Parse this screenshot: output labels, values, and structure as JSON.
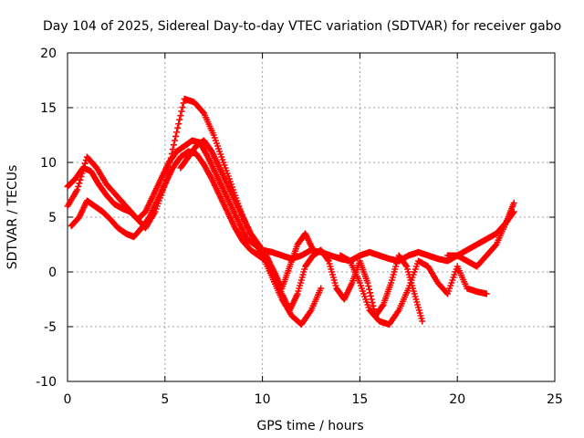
{
  "chart_data": {
    "type": "scatter",
    "title": "Day 104 of 2025, Sidereal Day-to-day VTEC variation (SDTVAR) for receiver gabo",
    "xlabel": "GPS time / hours",
    "ylabel": "SDTVAR / TECUs",
    "xlim": [
      0,
      25
    ],
    "ylim": [
      -10,
      20
    ],
    "xticks": [
      0,
      5,
      10,
      15,
      20,
      25
    ],
    "yticks": [
      -10,
      -5,
      0,
      5,
      10,
      15,
      20
    ],
    "xtick_labels": [
      "0",
      "5",
      "10",
      "15",
      "20",
      "25"
    ],
    "ytick_labels": [
      "-10",
      "-5",
      "0",
      "5",
      "10",
      "15",
      "20"
    ],
    "grid": true,
    "marker": "+",
    "series_color": "#ff0000",
    "series": [
      {
        "name": "trace-1",
        "x": [
          0,
          0.4,
          0.8,
          1.2,
          1.6,
          2.0,
          2.4,
          2.8,
          3.2,
          3.6,
          4.0,
          4.4,
          4.8,
          5.2,
          5.6,
          6.0,
          6.4,
          6.8,
          7.2,
          7.6,
          8.0,
          8.4,
          8.8,
          9.2,
          9.6,
          10.0,
          10.5,
          11.0,
          11.5,
          12.0,
          12.5,
          13.0,
          13.5,
          14.0,
          14.5,
          15.0,
          15.5,
          16.0,
          16.5,
          17.0,
          17.5,
          18.0,
          18.5,
          19.0,
          19.5,
          20.0,
          20.5,
          21.0,
          21.5,
          22.0,
          22.5,
          22.9
        ],
        "y": [
          7.8,
          8.5,
          9.5,
          9.2,
          8.0,
          7.0,
          6.2,
          5.8,
          5.5,
          4.8,
          5.5,
          7.0,
          8.5,
          10.0,
          11.0,
          11.5,
          12.0,
          11.8,
          10.5,
          9.0,
          7.5,
          6.0,
          4.5,
          3.0,
          2.5,
          2.0,
          1.8,
          1.5,
          1.2,
          1.5,
          2.0,
          1.8,
          1.5,
          1.2,
          1.0,
          1.5,
          1.8,
          1.5,
          1.2,
          1.0,
          1.5,
          1.8,
          1.5,
          1.2,
          1.0,
          1.5,
          2.0,
          2.5,
          3.0,
          3.5,
          4.5,
          5.5
        ]
      },
      {
        "name": "trace-2",
        "x": [
          0,
          0.5,
          1.0,
          1.5,
          2.0,
          2.5,
          3.0,
          3.5,
          4.0,
          4.5,
          5.0,
          5.5,
          6.0,
          6.5,
          7.0,
          7.5,
          8.0,
          8.5,
          9.0,
          9.5,
          10.0,
          10.5,
          11.0,
          11.5,
          12.0,
          12.5,
          13.0
        ],
        "y": [
          6.0,
          7.5,
          10.5,
          9.5,
          8.0,
          7.0,
          6.0,
          5.0,
          4.0,
          5.5,
          8.0,
          12.0,
          15.8,
          15.5,
          14.5,
          12.5,
          10.0,
          7.5,
          5.0,
          3.0,
          1.5,
          -0.5,
          -2.5,
          -4.0,
          -4.8,
          -3.5,
          -1.5
        ]
      },
      {
        "name": "trace-3",
        "x": [
          0.2,
          0.6,
          1.0,
          1.4,
          1.8,
          2.2,
          2.6,
          3.0,
          3.4,
          3.8,
          4.2,
          4.6,
          5.0,
          5.4,
          5.8,
          6.2,
          6.6,
          7.0,
          7.4,
          7.8,
          8.2,
          8.6,
          9.0,
          9.4,
          9.8,
          10.2,
          10.6,
          11.0,
          11.4,
          11.8,
          12.2,
          12.6,
          13.0,
          13.4,
          13.8,
          14.2,
          14.6,
          15.0,
          15.4,
          15.8,
          16.2,
          16.6,
          17.0,
          17.4,
          17.8,
          18.2
        ],
        "y": [
          4.2,
          5.0,
          6.5,
          6.0,
          5.5,
          4.8,
          4.0,
          3.5,
          3.2,
          4.0,
          5.0,
          6.5,
          8.0,
          9.5,
          10.5,
          11.0,
          10.8,
          9.8,
          8.5,
          7.0,
          5.5,
          4.0,
          2.8,
          2.0,
          1.5,
          1.0,
          0.0,
          -2.0,
          -3.5,
          -2.0,
          0.5,
          1.5,
          2.0,
          1.0,
          -1.5,
          -2.5,
          -1.0,
          1.0,
          -1.0,
          -4.0,
          -3.0,
          -1.0,
          1.5,
          0.5,
          -2.0,
          -4.5
        ]
      },
      {
        "name": "trace-4",
        "x": [
          5.8,
          6.2,
          6.6,
          7.0,
          7.4,
          7.8,
          8.2,
          8.6,
          9.0,
          9.4,
          9.8,
          10.2,
          10.6,
          11.0,
          11.4,
          11.8,
          12.2,
          12.6
        ],
        "y": [
          9.5,
          10.5,
          11.5,
          12.0,
          11.0,
          9.5,
          8.0,
          6.5,
          5.0,
          3.5,
          2.5,
          1.5,
          0.0,
          -1.5,
          0.5,
          2.5,
          3.5,
          2.0
        ]
      },
      {
        "name": "trace-5",
        "x": [
          14.0,
          14.5,
          15.0,
          15.5,
          16.0,
          16.5,
          17.0,
          17.5,
          18.0,
          18.5,
          19.0,
          19.5,
          20.0,
          20.5,
          21.0,
          21.5
        ],
        "y": [
          1.5,
          1.0,
          -1.0,
          -3.5,
          -4.5,
          -4.8,
          -3.5,
          -1.5,
          1.0,
          0.5,
          -1.0,
          -2.0,
          0.5,
          -1.5,
          -1.8,
          -2.0
        ]
      },
      {
        "name": "trace-6",
        "x": [
          19.5,
          20.0,
          20.5,
          21.0,
          21.5,
          22.0,
          22.5,
          22.9
        ],
        "y": [
          1.5,
          1.5,
          1.0,
          0.5,
          1.5,
          2.5,
          4.5,
          6.3
        ]
      }
    ]
  }
}
